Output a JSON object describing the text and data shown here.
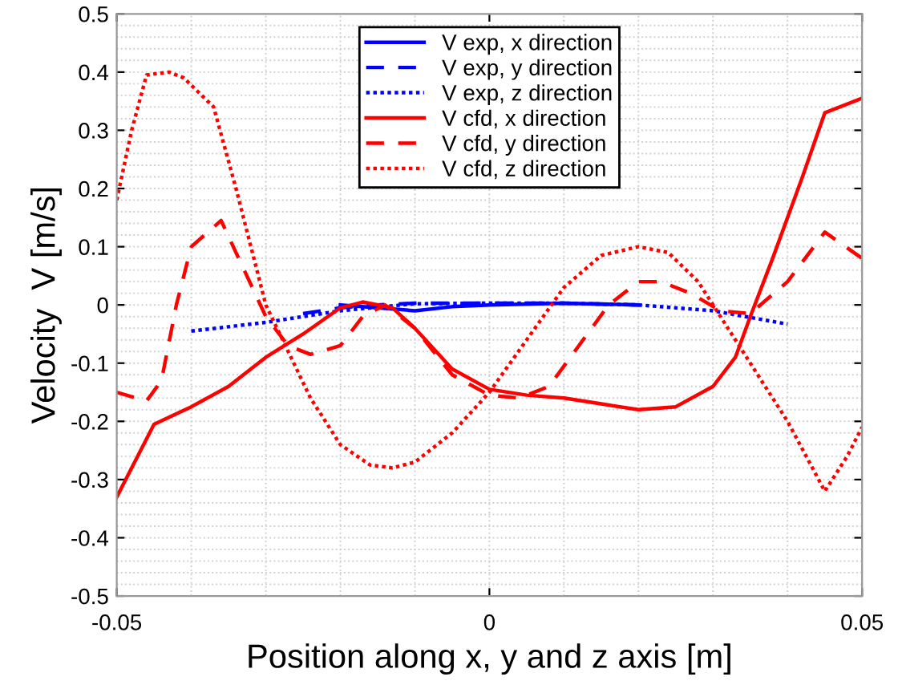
{
  "chart_data": {
    "type": "line",
    "xlabel": "Position along x, y and z axis [m]",
    "ylabel": "Velocity  V [m/s]",
    "xlim": [
      -0.05,
      0.05
    ],
    "xticks": [
      -0.05,
      0,
      0.05
    ],
    "ylim": [
      -0.5,
      0.5
    ],
    "yticks": [
      -0.5,
      -0.4,
      -0.3,
      -0.2,
      -0.1,
      0,
      0.1,
      0.2,
      0.3,
      0.4,
      0.5
    ],
    "grid": true,
    "legend": "top",
    "marker": "none",
    "series": [
      {
        "name": "V exp, x direction",
        "color": "#0000ff",
        "line_style": "solid",
        "x": [
          -0.02,
          -0.015,
          -0.01,
          -0.005,
          0,
          0.01,
          0.02
        ],
        "values": [
          0.0,
          -0.005,
          -0.01,
          -0.003,
          0.0,
          0.003,
          0.0
        ]
      },
      {
        "name": "V exp, y direction",
        "color": "#0000ff",
        "line_style": "dashed",
        "x": [
          -0.025,
          -0.02,
          -0.015,
          -0.01,
          0,
          0.01,
          0.02
        ],
        "values": [
          -0.015,
          -0.005,
          0.0,
          0.003,
          0.003,
          0.003,
          0.0
        ]
      },
      {
        "name": "V exp, z direction",
        "color": "#0000ff",
        "line_style": "dotted",
        "x": [
          -0.04,
          -0.03,
          -0.02,
          -0.01,
          0,
          0.01,
          0.02,
          0.03,
          0.04
        ],
        "values": [
          -0.045,
          -0.03,
          -0.01,
          0.002,
          0.003,
          0.003,
          0.0,
          -0.01,
          -0.033
        ]
      },
      {
        "name": "V cfd, x direction",
        "color": "#ff0000",
        "line_style": "solid",
        "x": [
          -0.05,
          -0.045,
          -0.04,
          -0.035,
          -0.03,
          -0.025,
          -0.02,
          -0.017,
          -0.013,
          -0.01,
          -0.005,
          0,
          0.005,
          0.01,
          0.015,
          0.02,
          0.025,
          0.03,
          0.033,
          0.035,
          0.038,
          0.042,
          0.045,
          0.05
        ],
        "values": [
          -0.33,
          -0.205,
          -0.175,
          -0.14,
          -0.09,
          -0.05,
          -0.005,
          0.005,
          -0.005,
          -0.04,
          -0.11,
          -0.145,
          -0.155,
          -0.16,
          -0.17,
          -0.18,
          -0.175,
          -0.14,
          -0.09,
          -0.02,
          0.08,
          0.22,
          0.33,
          0.355
        ]
      },
      {
        "name": "V cfd, y direction",
        "color": "#ff0000",
        "line_style": "dashed",
        "x": [
          -0.05,
          -0.046,
          -0.044,
          -0.042,
          -0.04,
          -0.036,
          -0.034,
          -0.03,
          -0.027,
          -0.024,
          -0.02,
          -0.017,
          -0.014,
          -0.01,
          -0.005,
          0,
          0.004,
          0.008,
          0.012,
          0.016,
          0.02,
          0.023,
          0.027,
          0.031,
          0.035,
          0.04,
          0.045,
          0.05
        ],
        "values": [
          -0.15,
          -0.165,
          -0.13,
          0.0,
          0.1,
          0.145,
          0.09,
          -0.02,
          -0.07,
          -0.085,
          -0.07,
          -0.02,
          0.0,
          -0.04,
          -0.12,
          -0.155,
          -0.16,
          -0.14,
          -0.07,
          0.0,
          0.04,
          0.04,
          0.02,
          -0.01,
          -0.015,
          0.04,
          0.125,
          0.08
        ]
      },
      {
        "name": "V cfd, z direction",
        "color": "#ff0000",
        "line_style": "dotted",
        "x": [
          -0.05,
          -0.048,
          -0.046,
          -0.043,
          -0.041,
          -0.037,
          -0.034,
          -0.03,
          -0.027,
          -0.024,
          -0.02,
          -0.016,
          -0.013,
          -0.01,
          -0.005,
          0,
          0.005,
          0.01,
          0.015,
          0.02,
          0.024,
          0.028,
          0.032,
          0.036,
          0.04,
          0.045,
          0.048,
          0.05
        ],
        "values": [
          0.18,
          0.3,
          0.395,
          0.4,
          0.39,
          0.34,
          0.2,
          0.0,
          -0.08,
          -0.16,
          -0.24,
          -0.275,
          -0.28,
          -0.27,
          -0.22,
          -0.15,
          -0.06,
          0.03,
          0.085,
          0.1,
          0.09,
          0.04,
          -0.04,
          -0.12,
          -0.2,
          -0.32,
          -0.26,
          -0.21
        ]
      }
    ]
  }
}
